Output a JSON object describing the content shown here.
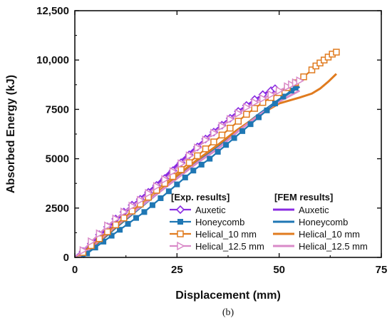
{
  "chart_data": {
    "type": "line",
    "xlabel": "Displacement (mm)",
    "ylabel": "Absorbed Energy (kJ)",
    "xlim": [
      0,
      75
    ],
    "ylim": [
      0,
      12500
    ],
    "xticks": [
      0,
      25,
      50,
      75
    ],
    "yticks": [
      0,
      2500,
      5000,
      7500,
      10000,
      12500
    ],
    "xtick_labels": [
      "0",
      "25",
      "50",
      "75"
    ],
    "ytick_labels": [
      "0",
      "2500",
      "5000",
      "7500",
      "10,000",
      "12,500"
    ],
    "grid": false,
    "legend_placement": "bottom-right",
    "legend_groups": [
      "[Exp. results]",
      "[FEM results]"
    ],
    "caption": "(b)",
    "series": [
      {
        "name": "Auxetic",
        "group": "exp",
        "color": "#8a2be2",
        "marker": "diamond",
        "x": [
          0,
          2,
          4,
          6,
          8,
          10,
          12,
          14,
          16,
          18,
          20,
          22,
          24,
          26,
          28,
          30,
          32,
          34,
          36,
          38,
          40,
          42,
          44,
          46,
          48,
          49
        ],
        "y": [
          0,
          300,
          700,
          1150,
          1550,
          1950,
          2300,
          2650,
          2950,
          3300,
          3650,
          4000,
          4400,
          4800,
          5200,
          5600,
          6000,
          6350,
          6700,
          7050,
          7400,
          7700,
          8000,
          8250,
          8450,
          8550
        ]
      },
      {
        "name": "Honeycomb",
        "group": "exp",
        "color": "#1f77b4",
        "marker": "square",
        "x": [
          1.5,
          3,
          5,
          7,
          9,
          11,
          13,
          15,
          17,
          19,
          21,
          23,
          25,
          27,
          29,
          31,
          33,
          35,
          37,
          39,
          41,
          43,
          45,
          47,
          49,
          51,
          53,
          54
        ],
        "y": [
          0,
          200,
          500,
          800,
          1100,
          1400,
          1700,
          2000,
          2300,
          2650,
          3000,
          3350,
          3700,
          4050,
          4400,
          4700,
          5000,
          5350,
          5700,
          6050,
          6400,
          6750,
          7100,
          7450,
          7800,
          8150,
          8450,
          8600
        ]
      },
      {
        "name": "Helical_10 mm",
        "group": "exp",
        "color": "#e07b1f",
        "marker": "open-square",
        "x": [
          0,
          2,
          4,
          6,
          8,
          10,
          12,
          14,
          16,
          18,
          20,
          22,
          24,
          26,
          28,
          30,
          32,
          34,
          36,
          38,
          40,
          42,
          44,
          46,
          48,
          50,
          52,
          54,
          56,
          58,
          59,
          60,
          61,
          62,
          63,
          64
        ],
        "y": [
          0,
          250,
          600,
          950,
          1300,
          1650,
          2000,
          2350,
          2700,
          3050,
          3400,
          3750,
          4100,
          4450,
          4800,
          5150,
          5500,
          5850,
          6200,
          6550,
          6900,
          7250,
          7550,
          7850,
          8100,
          8350,
          8600,
          8850,
          9150,
          9500,
          9700,
          9850,
          10000,
          10150,
          10300,
          10400
        ]
      },
      {
        "name": "Helical_12.5 mm",
        "group": "exp",
        "color": "#d98ac8",
        "marker": "triangle-right",
        "x": [
          0,
          2,
          4,
          6,
          8,
          10,
          12,
          14,
          16,
          18,
          20,
          22,
          24,
          26,
          28,
          30,
          32,
          34,
          36,
          38,
          40,
          42,
          44,
          46,
          48,
          50,
          52,
          53,
          54,
          55
        ],
        "y": [
          0,
          350,
          800,
          1200,
          1600,
          1950,
          2300,
          2600,
          2900,
          3250,
          3600,
          3950,
          4350,
          4750,
          5150,
          5550,
          5950,
          6300,
          6650,
          7000,
          7300,
          7600,
          7850,
          8050,
          8250,
          8450,
          8650,
          8750,
          8850,
          8950
        ]
      },
      {
        "name": "Auxetic",
        "group": "fem",
        "color": "#8a2be2",
        "x": [
          0,
          5,
          10,
          15,
          20,
          25,
          30,
          35,
          40,
          45,
          48
        ],
        "y": [
          0,
          900,
          1850,
          2800,
          3700,
          4700,
          5650,
          6550,
          7400,
          8100,
          8500
        ]
      },
      {
        "name": "Honeycomb",
        "group": "fem",
        "color": "#1f77b4",
        "x": [
          2,
          5,
          10,
          15,
          20,
          25,
          30,
          35,
          40,
          45,
          50,
          55
        ],
        "y": [
          0,
          600,
          1500,
          2350,
          3200,
          4100,
          4900,
          5650,
          6450,
          7250,
          8000,
          8650
        ]
      },
      {
        "name": "Helical_10 mm",
        "group": "fem",
        "color": "#e07b1f",
        "x": [
          1,
          5,
          10,
          15,
          20,
          25,
          30,
          35,
          40,
          45,
          50,
          55,
          58,
          60,
          62,
          64
        ],
        "y": [
          0,
          650,
          1550,
          2400,
          3250,
          4150,
          4950,
          5700,
          6500,
          7200,
          7800,
          8100,
          8300,
          8550,
          8900,
          9300
        ]
      },
      {
        "name": "Helical_12.5 mm",
        "group": "fem",
        "color": "#d98ac8",
        "x": [
          1,
          5,
          10,
          15,
          20,
          25,
          30,
          35,
          40,
          45,
          50,
          55
        ],
        "y": [
          0,
          700,
          1600,
          2400,
          3200,
          4000,
          4800,
          5500,
          6400,
          7200,
          7900,
          8450
        ]
      }
    ]
  }
}
